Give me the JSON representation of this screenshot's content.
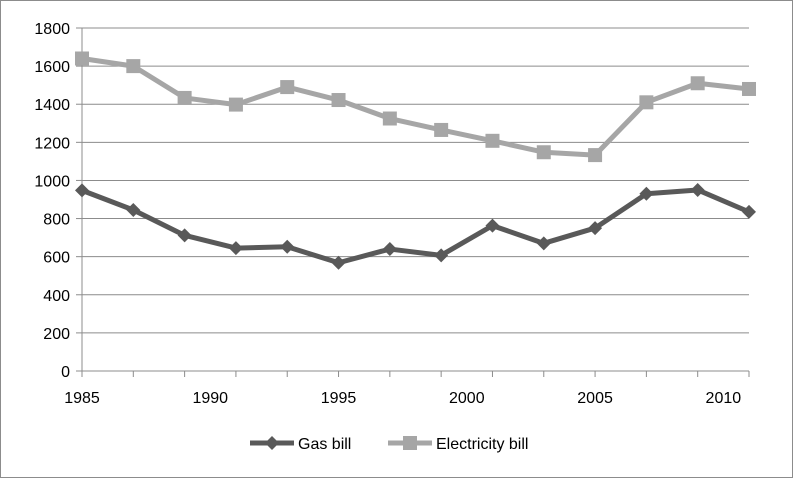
{
  "chart_data": {
    "type": "line",
    "x": [
      1985,
      1987,
      1989,
      1991,
      1993,
      1995,
      1997,
      1999,
      2001,
      2003,
      2005,
      2007,
      2009,
      2011
    ],
    "series": [
      {
        "name": "Gas bill",
        "color": "#595959",
        "marker": "diamond",
        "values": [
          948,
          845,
          712,
          645,
          652,
          568,
          640,
          607,
          763,
          670,
          750,
          930,
          950,
          835
        ]
      },
      {
        "name": "Electricity bill",
        "color": "#a6a6a6",
        "marker": "square",
        "values": [
          1640,
          1600,
          1433,
          1398,
          1490,
          1422,
          1325,
          1265,
          1208,
          1148,
          1133,
          1410,
          1510,
          1480
        ]
      }
    ],
    "xlim": [
      1985,
      2011
    ],
    "ylim": [
      0,
      1800
    ],
    "xticks": [
      1985,
      1990,
      1995,
      2000,
      2005,
      2010
    ],
    "yticks": [
      0,
      200,
      400,
      600,
      800,
      1000,
      1200,
      1400,
      1600,
      1800
    ],
    "grid": "horizontal",
    "legend": "bottom"
  }
}
